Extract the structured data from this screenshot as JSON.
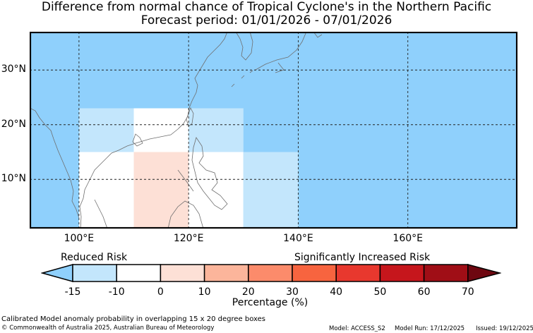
{
  "title_line1": "Difference from normal chance of Tropical Cyclone's in the Northern Pacific",
  "title_line2": "Forecast period: 01/01/2026 - 07/01/2026",
  "map": {
    "lon_range": [
      91,
      180
    ],
    "lat_range": [
      1,
      37
    ],
    "x_ticks": [
      {
        "value": 100,
        "label": "100°E"
      },
      {
        "value": 120,
        "label": "120°E"
      },
      {
        "value": 140,
        "label": "140°E"
      },
      {
        "value": 160,
        "label": "160°E"
      }
    ],
    "y_ticks": [
      {
        "value": 30,
        "label": "30°N"
      },
      {
        "value": 20,
        "label": "20°N"
      },
      {
        "value": 10,
        "label": "10°N"
      }
    ],
    "gridlines": true,
    "background_color": "#8fd0fc",
    "anomaly_boxes": [
      {
        "lon": [
          100,
          110
        ],
        "lat": [
          15,
          23
        ],
        "color": "#c3e6fc"
      },
      {
        "lon": [
          110,
          120
        ],
        "lat": [
          15,
          23
        ],
        "color": "#ffffff"
      },
      {
        "lon": [
          120,
          130
        ],
        "lat": [
          15,
          23
        ],
        "color": "#c3e6fc"
      },
      {
        "lon": [
          100,
          110
        ],
        "lat": [
          1,
          15
        ],
        "color": "#ffffff"
      },
      {
        "lon": [
          110,
          120
        ],
        "lat": [
          1,
          15
        ],
        "color": "#fde0d6"
      },
      {
        "lon": [
          120,
          130
        ],
        "lat": [
          1,
          15
        ],
        "color": "#ffffff"
      },
      {
        "lon": [
          130,
          140
        ],
        "lat": [
          1,
          15
        ],
        "color": "#c3e6fc"
      }
    ]
  },
  "colorbar": {
    "reduced_label": "Reduced Risk",
    "increased_label": "Significantly Increased Risk",
    "ticks": [
      "-15",
      "-10",
      "0",
      "10",
      "20",
      "30",
      "40",
      "50",
      "60",
      "70"
    ],
    "colors": [
      "#8fd0fc",
      "#c3e6fc",
      "#ffffff",
      "#fde0d6",
      "#fcb59b",
      "#fc8b6b",
      "#f7643f",
      "#e8382e",
      "#c6161c",
      "#a00e16",
      "#6e0710"
    ],
    "label": "Percentage (%)"
  },
  "footer": {
    "line1": "Calibrated Model anomaly probability in overlapping 15 x 20 degree boxes",
    "line2": "© Commonwealth of Australia 2025, Australian Bureau of Meteorology",
    "model": "Model: ACCESS_S2",
    "model_run": "Model Run: 17/12/2025",
    "issued": "Issued: 19/12/2025"
  }
}
